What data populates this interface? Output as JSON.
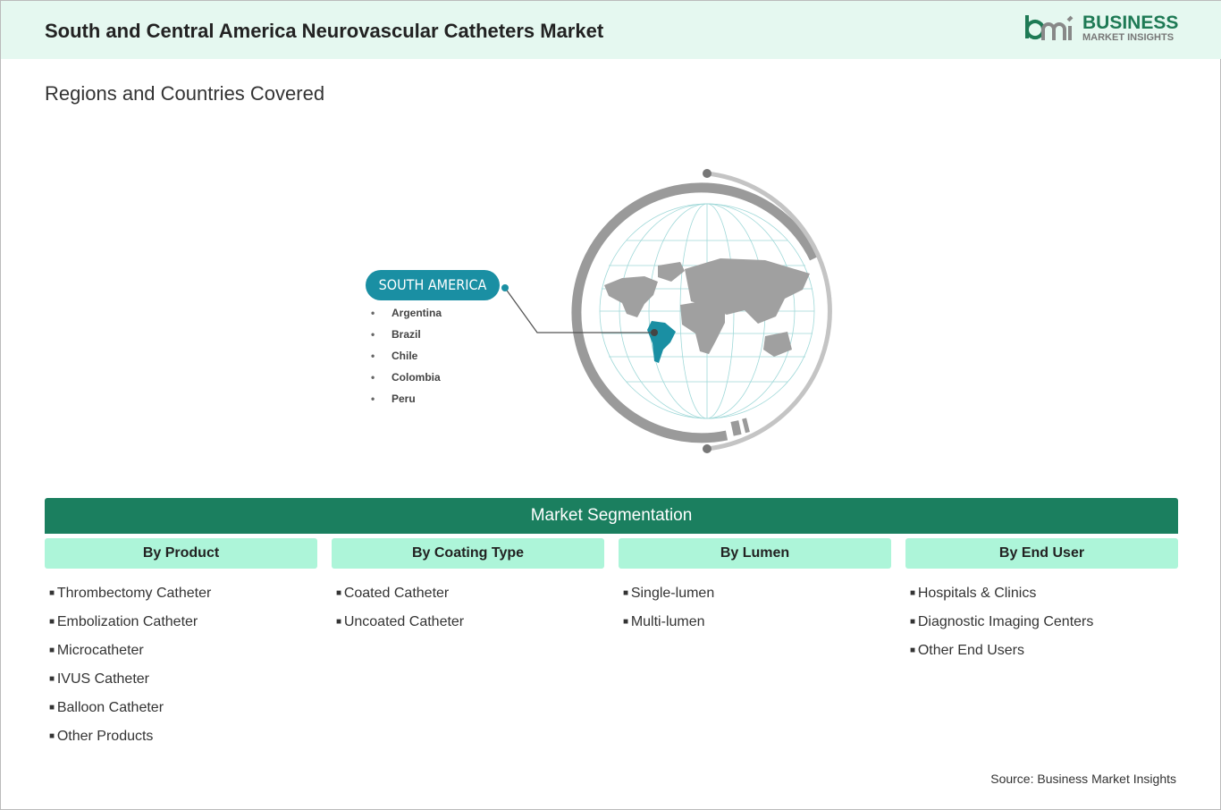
{
  "header": {
    "title": "South and Central America Neurovascular Catheters Market",
    "logo": {
      "mark": "bmi",
      "line1": "BUSINESS",
      "line2": "MARKET INSIGHTS"
    }
  },
  "subtitle": "Regions and Countries Covered",
  "region": {
    "label": "SOUTH AMERICA",
    "countries": [
      "Argentina",
      "Brazil",
      "Chile",
      "Colombia",
      "Peru"
    ],
    "highlight_color": "#1a8fa3"
  },
  "segmentation": {
    "title": "Market Segmentation",
    "columns": [
      {
        "heading": "By Product",
        "items": [
          "Thrombectomy Catheter",
          "Embolization Catheter",
          "Microcatheter",
          "IVUS Catheter",
          "Balloon Catheter",
          "Other Products"
        ]
      },
      {
        "heading": "By Coating Type",
        "items": [
          "Coated Catheter",
          "Uncoated Catheter"
        ]
      },
      {
        "heading": "By Lumen",
        "items": [
          "Single-lumen",
          "Multi-lumen"
        ]
      },
      {
        "heading": "By End User",
        "items": [
          "Hospitals & Clinics",
          "Diagnostic Imaging Centers",
          "Other End Users"
        ]
      }
    ]
  },
  "source": "Source: Business Market Insights"
}
